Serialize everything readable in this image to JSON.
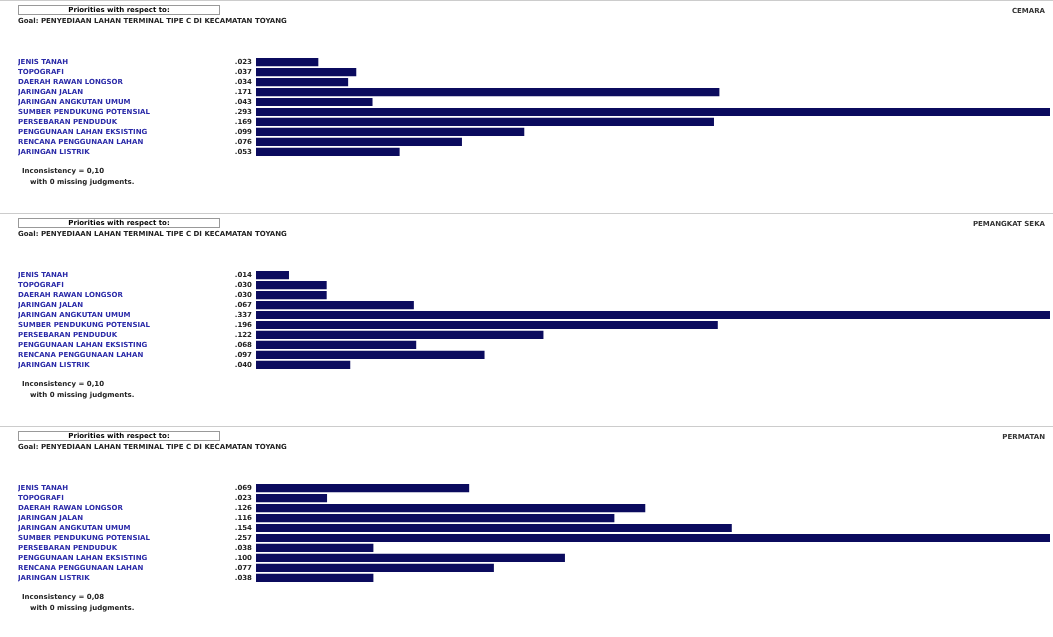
{
  "chart_data": [
    {
      "type": "bar",
      "orientation": "horizontal",
      "title": "Priorities with respect to:",
      "subtitle": "Goal: PENYEDIAAN LAHAN TERMINAL TIPE C DI KECAMATAN TOYANG",
      "legend_title": "CEMARA",
      "categories": [
        "JENIS TANAH",
        "TOPOGRAFI",
        "DAERAH RAWAN LONGSOR",
        "JARINGAN JALAN",
        "JARINGAN ANGKUTAN UMUM",
        "SUMBER PENDUKUNG POTENSIAL",
        "PERSEBARAN PENDUDUK",
        "PENGGUNAAN LAHAN EKSISTING",
        "RENCANA PENGGUNAAN LAHAN",
        "JARINGAN LISTRIK"
      ],
      "values": [
        0.023,
        0.037,
        0.034,
        0.171,
        0.043,
        0.293,
        0.169,
        0.099,
        0.076,
        0.053
      ],
      "value_labels": [
        ".023",
        ".037",
        ".034",
        ".171",
        ".043",
        ".293",
        ".169",
        ".099",
        ".076",
        ".053"
      ],
      "color": "#0b0b5e",
      "xlim": [
        0,
        0.293
      ],
      "tick_labels": "y",
      "annotations": [
        "Inconsistency = 0,10",
        "with 0 missing judgments."
      ]
    },
    {
      "type": "bar",
      "orientation": "horizontal",
      "title": "Priorities with respect to:",
      "subtitle": "Goal: PENYEDIAAN LAHAN TERMINAL TIPE C DI KECAMATAN TOYANG",
      "legend_title": "PEMANGKAT SEKA",
      "categories": [
        "JENIS TANAH",
        "TOPOGRAFI",
        "DAERAH RAWAN LONGSOR",
        "JARINGAN JALAN",
        "JARINGAN ANGKUTAN UMUM",
        "SUMBER PENDUKUNG POTENSIAL",
        "PERSEBARAN PENDUDUK",
        "PENGGUNAAN LAHAN EKSISTING",
        "RENCANA PENGGUNAAN LAHAN",
        "JARINGAN LISTRIK"
      ],
      "values": [
        0.014,
        0.03,
        0.03,
        0.067,
        0.337,
        0.196,
        0.122,
        0.068,
        0.097,
        0.04
      ],
      "value_labels": [
        ".014",
        ".030",
        ".030",
        ".067",
        ".337",
        ".196",
        ".122",
        ".068",
        ".097",
        ".040"
      ],
      "color": "#0b0b5e",
      "xlim": [
        0,
        0.337
      ],
      "tick_labels": "y",
      "annotations": [
        "Inconsistency = 0,10",
        "with 0 missing judgments."
      ]
    },
    {
      "type": "bar",
      "orientation": "horizontal",
      "title": "Priorities with respect to:",
      "subtitle": "Goal: PENYEDIAAN LAHAN TERMINAL TIPE C DI KECAMATAN TOYANG",
      "legend_title": "PERMATAN",
      "categories": [
        "JENIS TANAH",
        "TOPOGRAFI",
        "DAERAH RAWAN LONGSOR",
        "JARINGAN JALAN",
        "JARINGAN ANGKUTAN UMUM",
        "SUMBER PENDUKUNG POTENSIAL",
        "PERSEBARAN PENDUDUK",
        "PENGGUNAAN LAHAN EKSISTING",
        "RENCANA PENGGUNAAN LAHAN",
        "JARINGAN LISTRIK"
      ],
      "values": [
        0.069,
        0.023,
        0.126,
        0.116,
        0.154,
        0.257,
        0.038,
        0.1,
        0.077,
        0.038
      ],
      "value_labels": [
        ".069",
        ".023",
        ".126",
        ".116",
        ".154",
        ".257",
        ".038",
        ".100",
        ".077",
        ".038"
      ],
      "color": "#0b0b5e",
      "xlim": [
        0,
        0.257
      ],
      "tick_labels": "y",
      "annotations": [
        "Inconsistency = 0,08",
        "with 0 missing judgments."
      ]
    }
  ]
}
